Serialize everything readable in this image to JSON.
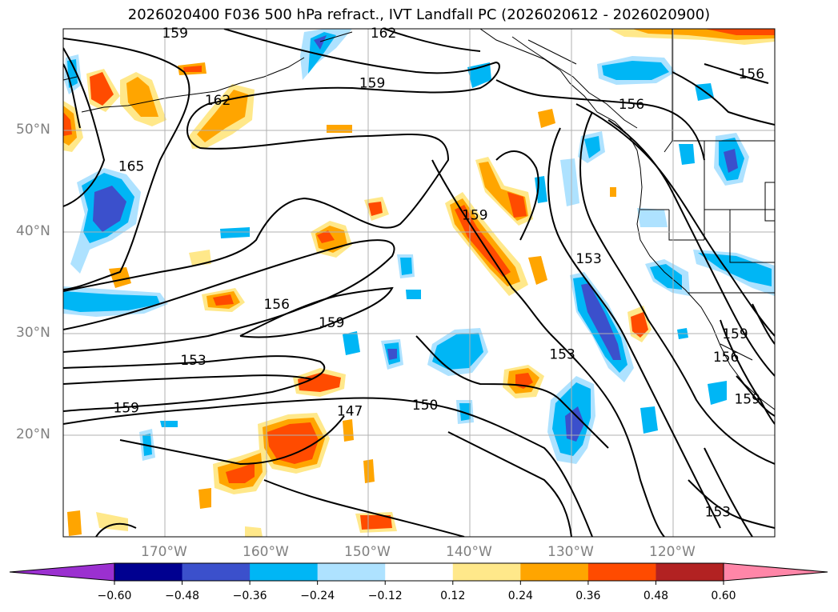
{
  "title": "2026020400 F036 500 hPa refract., IVT Landfall PC (2026020612 - 2026020900)",
  "lat_labels": [
    {
      "text": "50°N",
      "lat": 50
    },
    {
      "text": "40°N",
      "lat": 40
    },
    {
      "text": "30°N",
      "lat": 30
    },
    {
      "text": "20°N",
      "lat": 20
    }
  ],
  "lon_labels": [
    {
      "text": "170°W",
      "lon": -170
    },
    {
      "text": "160°W",
      "lon": -160
    },
    {
      "text": "150°W",
      "lon": -150
    },
    {
      "text": "140°W",
      "lon": -140
    },
    {
      "text": "130°W",
      "lon": -130
    },
    {
      "text": "120°W",
      "lon": -120
    }
  ],
  "contour_labels": [
    {
      "text": "159",
      "lon": -169.0,
      "lat": 59.6
    },
    {
      "text": "162",
      "lon": -148.5,
      "lat": 59.6
    },
    {
      "text": "162",
      "lon": -164.8,
      "lat": 53.0
    },
    {
      "text": "159",
      "lon": -139.5,
      "lat": 41.7
    },
    {
      "text": "159",
      "lon": -149.6,
      "lat": 54.7
    },
    {
      "text": "156",
      "lon": -124.1,
      "lat": 52.6
    },
    {
      "text": "156",
      "lon": -112.3,
      "lat": 55.6
    },
    {
      "text": "165",
      "lon": -173.3,
      "lat": 46.5
    },
    {
      "text": "153",
      "lon": -128.3,
      "lat": 37.4
    },
    {
      "text": "156",
      "lon": -159.0,
      "lat": 32.9
    },
    {
      "text": "159",
      "lon": -153.6,
      "lat": 31.1
    },
    {
      "text": "153",
      "lon": -167.2,
      "lat": 27.4
    },
    {
      "text": "153",
      "lon": -130.9,
      "lat": 28.0
    },
    {
      "text": "159",
      "lon": -173.8,
      "lat": 22.7
    },
    {
      "text": "147",
      "lon": -151.8,
      "lat": 22.4
    },
    {
      "text": "150",
      "lon": -144.4,
      "lat": 23.0
    },
    {
      "text": "153",
      "lon": -115.6,
      "lat": 12.5
    },
    {
      "text": "156",
      "lon": -114.8,
      "lat": 27.7
    },
    {
      "text": "159",
      "lon": -113.9,
      "lat": 30.0
    },
    {
      "text": "159",
      "lon": -112.7,
      "lat": 23.6
    }
  ],
  "colorbar": {
    "ticks": [
      "−0.60",
      "−0.48",
      "−0.36",
      "−0.24",
      "−0.12",
      "0.12",
      "0.24",
      "0.36",
      "0.48",
      "0.60"
    ],
    "colors": [
      "#9b30d0",
      "#000090",
      "#3b50cc",
      "#00b6f5",
      "#aee2ff",
      "#ffffff",
      "#ffe88a",
      "#ffa500",
      "#ff4b00",
      "#b22222",
      "#ff86a8"
    ]
  },
  "shade_colors": {
    "neg_1": "#aee2ff",
    "neg_2": "#00b6f5",
    "neg_3": "#3b50cc",
    "pos_1": "#ffe88a",
    "pos_2": "#ffa500",
    "pos_3": "#ff4b00"
  }
}
